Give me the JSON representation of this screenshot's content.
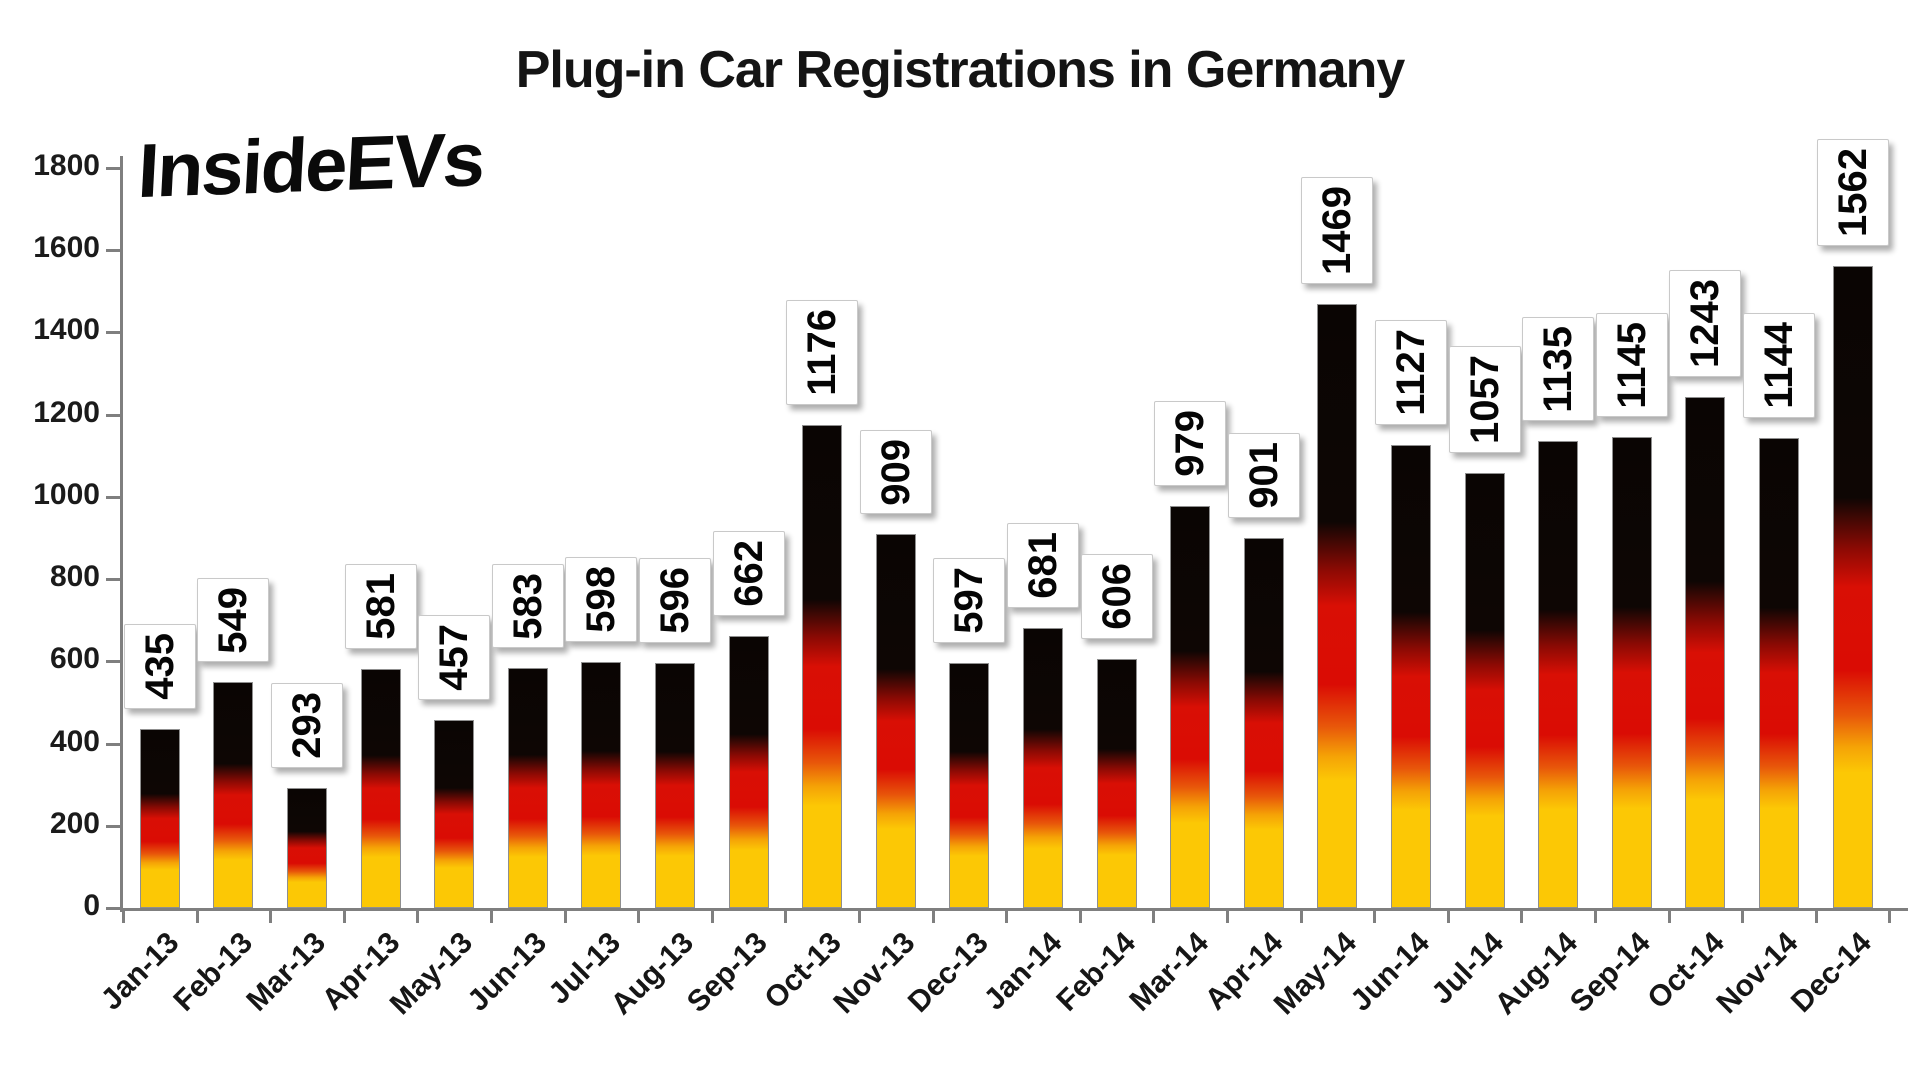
{
  "header": {
    "title": "Plug-in Car Registrations in Germany"
  },
  "watermark": {
    "text": "InsideEVs"
  },
  "chart_data": {
    "type": "bar",
    "title": "Plug-in Car Registrations in Germany",
    "categories": [
      "Jan-13",
      "Feb-13",
      "Mar-13",
      "Apr-13",
      "May-13",
      "Jun-13",
      "Jul-13",
      "Aug-13",
      "Sep-13",
      "Oct-13",
      "Nov-13",
      "Dec-13",
      "Jan-14",
      "Feb-14",
      "Mar-14",
      "Apr-14",
      "May-14",
      "Jun-14",
      "Jul-14",
      "Aug-14",
      "Sep-14",
      "Oct-14",
      "Nov-14",
      "Dec-14"
    ],
    "values": [
      435,
      549,
      293,
      581,
      457,
      583,
      598,
      596,
      662,
      1176,
      909,
      597,
      681,
      606,
      979,
      901,
      1469,
      1127,
      1057,
      1135,
      1145,
      1243,
      1144,
      1562
    ],
    "xlabel": "",
    "ylabel": "",
    "ylim": [
      0,
      1800
    ],
    "ytick_step": 200,
    "y_ticks": [
      0,
      200,
      400,
      600,
      800,
      1000,
      1200,
      1400,
      1600,
      1800
    ],
    "grid": false,
    "legend_position": "none",
    "value_label_rotation": "up",
    "x_label_rotation": 45,
    "bar_style": {
      "gradient": "german-flag-vertical",
      "color_black": "#0a0503",
      "color_red": "#d90d05",
      "color_gold": "#fcc805",
      "border_color": "#8f8f8f"
    },
    "value_label_style": {
      "background": "#ffffff",
      "border": "#c9c9c9",
      "text_color": "#050505"
    },
    "axis_color": "#7f7f7f"
  }
}
